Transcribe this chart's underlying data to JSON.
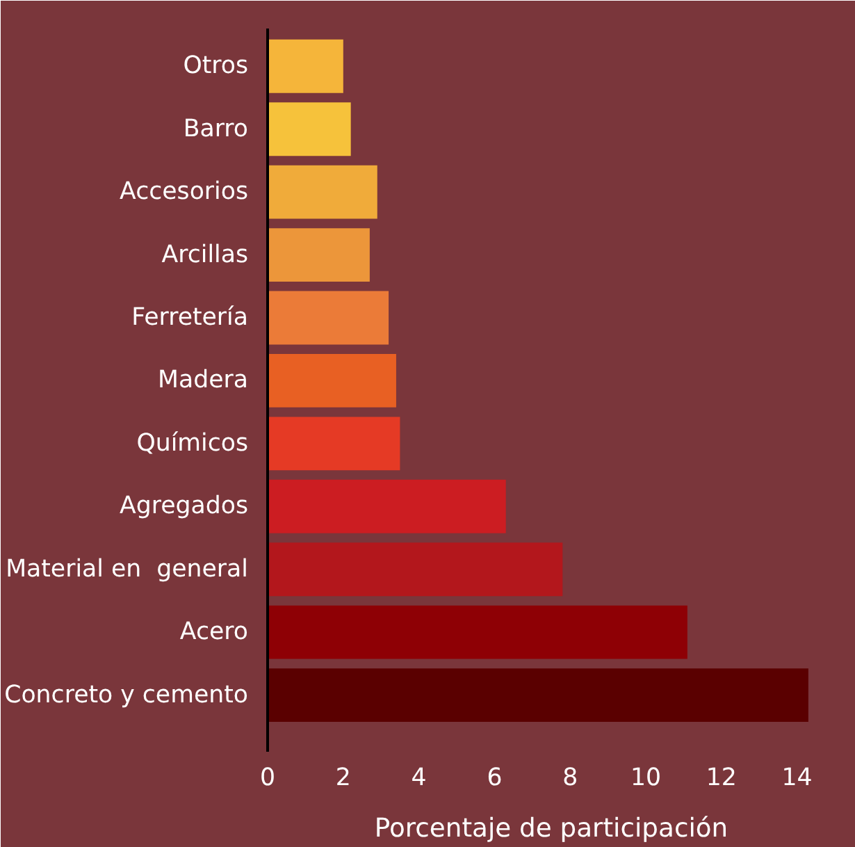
{
  "chart_data": {
    "type": "bar",
    "orientation": "horizontal",
    "xlabel": "Porcentaje de participación",
    "categories": [
      "Otros",
      "Barro",
      "Accesorios",
      "Arcillas",
      "Ferretería",
      "Madera",
      "Químicos",
      "Agregados",
      "Material en  general",
      "Acero",
      "Concreto y cemento"
    ],
    "values": [
      2.0,
      2.2,
      2.9,
      2.7,
      3.2,
      3.4,
      3.5,
      6.3,
      7.8,
      11.1,
      14.3
    ],
    "colors": [
      "#f5b53a",
      "#f6c23b",
      "#f0ab3a",
      "#ec963a",
      "#eb7b38",
      "#e86023",
      "#e53a25",
      "#cc1d22",
      "#b3171c",
      "#8e0005",
      "#5a0000"
    ],
    "xlim": [
      0,
      15
    ],
    "xticks": [
      0,
      2,
      4,
      6,
      8,
      10,
      12,
      14
    ],
    "grid": false
  }
}
